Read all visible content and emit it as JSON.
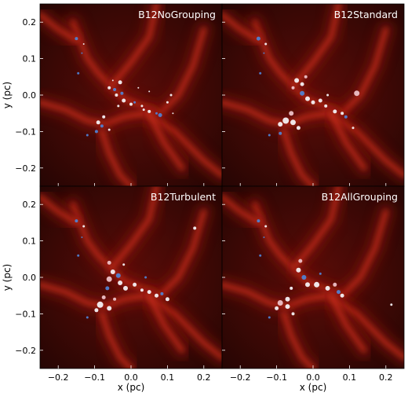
{
  "chart_data": {
    "type": "scatter",
    "xlabel": "x (pc)",
    "ylabel": "y (pc)",
    "xlim": [
      -0.25,
      0.25
    ],
    "ylim": [
      -0.25,
      0.25
    ],
    "xticks": [
      "−0.2",
      "−0.1",
      "0.0",
      "0.1",
      "0.2"
    ],
    "xtick_values": [
      -0.2,
      -0.1,
      0.0,
      0.1,
      0.2
    ],
    "yticks": [
      "−0.2",
      "−0.1",
      "0.0",
      "0.1",
      "0.2"
    ],
    "ytick_values": [
      -0.2,
      -0.1,
      0.0,
      0.1,
      0.2
    ],
    "grid": false,
    "background": "dark red gas density map",
    "colors": {
      "blue": "#4f83d6",
      "light_blue": "#9fc2ee",
      "white": "#f7f7fb",
      "pink": "#f0c6cc"
    },
    "panels": [
      {
        "title": "B12NoGrouping",
        "points": [
          {
            "x": -0.15,
            "y": 0.155,
            "s": 2,
            "c": "blue"
          },
          {
            "x": -0.13,
            "y": 0.14,
            "s": 1,
            "c": "white"
          },
          {
            "x": -0.135,
            "y": 0.115,
            "s": 1,
            "c": "blue"
          },
          {
            "x": -0.145,
            "y": 0.06,
            "s": 1.5,
            "c": "blue"
          },
          {
            "x": -0.05,
            "y": 0.04,
            "s": 1,
            "c": "white"
          },
          {
            "x": -0.06,
            "y": 0.02,
            "s": 2,
            "c": "white"
          },
          {
            "x": -0.045,
            "y": 0.015,
            "s": 2,
            "c": "blue"
          },
          {
            "x": -0.03,
            "y": 0.035,
            "s": 2.5,
            "c": "white"
          },
          {
            "x": -0.04,
            "y": 0.0,
            "s": 2,
            "c": "white"
          },
          {
            "x": -0.025,
            "y": 0.005,
            "s": 2,
            "c": "blue"
          },
          {
            "x": -0.02,
            "y": -0.015,
            "s": 2.5,
            "c": "white"
          },
          {
            "x": -0.035,
            "y": -0.03,
            "s": 1.5,
            "c": "white"
          },
          {
            "x": 0.0,
            "y": -0.025,
            "s": 2,
            "c": "white"
          },
          {
            "x": 0.01,
            "y": -0.02,
            "s": 1.5,
            "c": "blue"
          },
          {
            "x": 0.03,
            "y": -0.03,
            "s": 1.5,
            "c": "white"
          },
          {
            "x": 0.035,
            "y": -0.04,
            "s": 1.5,
            "c": "white"
          },
          {
            "x": 0.05,
            "y": -0.045,
            "s": 2,
            "c": "white"
          },
          {
            "x": 0.07,
            "y": -0.05,
            "s": 1.5,
            "c": "blue"
          },
          {
            "x": 0.08,
            "y": -0.055,
            "s": 2.5,
            "c": "blue"
          },
          {
            "x": 0.1,
            "y": -0.02,
            "s": 1.5,
            "c": "white"
          },
          {
            "x": 0.11,
            "y": 0.0,
            "s": 1.5,
            "c": "white"
          },
          {
            "x": 0.115,
            "y": -0.05,
            "s": 1,
            "c": "white"
          },
          {
            "x": -0.075,
            "y": -0.06,
            "s": 2,
            "c": "white"
          },
          {
            "x": -0.09,
            "y": -0.075,
            "s": 2.5,
            "c": "white"
          },
          {
            "x": -0.08,
            "y": -0.085,
            "s": 2,
            "c": "blue"
          },
          {
            "x": -0.095,
            "y": -0.1,
            "s": 2,
            "c": "blue"
          },
          {
            "x": -0.06,
            "y": -0.095,
            "s": 1.5,
            "c": "white"
          },
          {
            "x": -0.12,
            "y": -0.11,
            "s": 1.5,
            "c": "blue"
          },
          {
            "x": 0.05,
            "y": 0.01,
            "s": 1,
            "c": "white"
          },
          {
            "x": 0.02,
            "y": 0.02,
            "s": 1,
            "c": "white"
          }
        ]
      },
      {
        "title": "B12Standard",
        "points": [
          {
            "x": -0.15,
            "y": 0.155,
            "s": 2.5,
            "c": "blue"
          },
          {
            "x": -0.13,
            "y": 0.14,
            "s": 1.5,
            "c": "white"
          },
          {
            "x": -0.135,
            "y": 0.115,
            "s": 1,
            "c": "blue"
          },
          {
            "x": -0.145,
            "y": 0.06,
            "s": 1.5,
            "c": "blue"
          },
          {
            "x": -0.045,
            "y": 0.04,
            "s": 3,
            "c": "white"
          },
          {
            "x": -0.03,
            "y": 0.03,
            "s": 2.5,
            "c": "white"
          },
          {
            "x": -0.055,
            "y": 0.02,
            "s": 2,
            "c": "pink"
          },
          {
            "x": -0.03,
            "y": 0.005,
            "s": 3,
            "c": "blue"
          },
          {
            "x": -0.015,
            "y": -0.01,
            "s": 3,
            "c": "white"
          },
          {
            "x": 0.0,
            "y": -0.02,
            "s": 2.5,
            "c": "white"
          },
          {
            "x": 0.02,
            "y": -0.015,
            "s": 2.5,
            "c": "white"
          },
          {
            "x": 0.035,
            "y": -0.03,
            "s": 2,
            "c": "white"
          },
          {
            "x": 0.06,
            "y": -0.045,
            "s": 2.5,
            "c": "white"
          },
          {
            "x": 0.08,
            "y": -0.05,
            "s": 2,
            "c": "white"
          },
          {
            "x": 0.09,
            "y": -0.06,
            "s": 2,
            "c": "blue"
          },
          {
            "x": 0.12,
            "y": 0.005,
            "s": 3.5,
            "c": "pink"
          },
          {
            "x": 0.11,
            "y": -0.09,
            "s": 1.5,
            "c": "white"
          },
          {
            "x": -0.06,
            "y": -0.05,
            "s": 3,
            "c": "pink"
          },
          {
            "x": -0.075,
            "y": -0.07,
            "s": 4,
            "c": "white"
          },
          {
            "x": -0.055,
            "y": -0.075,
            "s": 3.5,
            "c": "white"
          },
          {
            "x": -0.09,
            "y": -0.08,
            "s": 3,
            "c": "white"
          },
          {
            "x": -0.04,
            "y": -0.09,
            "s": 2.5,
            "c": "white"
          },
          {
            "x": -0.09,
            "y": -0.105,
            "s": 2,
            "c": "blue"
          },
          {
            "x": -0.12,
            "y": -0.11,
            "s": 1.5,
            "c": "blue"
          },
          {
            "x": 0.04,
            "y": 0.0,
            "s": 1.5,
            "c": "white"
          },
          {
            "x": -0.02,
            "y": 0.05,
            "s": 2,
            "c": "pink"
          }
        ]
      },
      {
        "title": "B12Turbulent",
        "points": [
          {
            "x": -0.15,
            "y": 0.155,
            "s": 2,
            "c": "blue"
          },
          {
            "x": -0.13,
            "y": 0.14,
            "s": 1.5,
            "c": "white"
          },
          {
            "x": -0.135,
            "y": 0.11,
            "s": 1,
            "c": "blue"
          },
          {
            "x": -0.145,
            "y": 0.06,
            "s": 1.5,
            "c": "blue"
          },
          {
            "x": 0.175,
            "y": 0.135,
            "s": 2,
            "c": "white"
          },
          {
            "x": -0.06,
            "y": 0.04,
            "s": 2.5,
            "c": "pink"
          },
          {
            "x": -0.05,
            "y": 0.015,
            "s": 3,
            "c": "white"
          },
          {
            "x": -0.035,
            "y": 0.005,
            "s": 3,
            "c": "blue"
          },
          {
            "x": -0.06,
            "y": -0.005,
            "s": 3.5,
            "c": "pink"
          },
          {
            "x": -0.03,
            "y": -0.015,
            "s": 3,
            "c": "white"
          },
          {
            "x": -0.015,
            "y": -0.03,
            "s": 3,
            "c": "white"
          },
          {
            "x": 0.01,
            "y": -0.02,
            "s": 2.5,
            "c": "white"
          },
          {
            "x": 0.03,
            "y": -0.035,
            "s": 2,
            "c": "white"
          },
          {
            "x": 0.05,
            "y": -0.04,
            "s": 2.5,
            "c": "white"
          },
          {
            "x": 0.07,
            "y": -0.05,
            "s": 2.5,
            "c": "white"
          },
          {
            "x": 0.085,
            "y": -0.045,
            "s": 2,
            "c": "blue"
          },
          {
            "x": 0.1,
            "y": -0.06,
            "s": 2.5,
            "c": "white"
          },
          {
            "x": -0.065,
            "y": -0.03,
            "s": 2.5,
            "c": "blue"
          },
          {
            "x": -0.075,
            "y": -0.055,
            "s": 2.5,
            "c": "pink"
          },
          {
            "x": -0.085,
            "y": -0.075,
            "s": 4,
            "c": "white"
          },
          {
            "x": -0.06,
            "y": -0.085,
            "s": 3,
            "c": "white"
          },
          {
            "x": -0.095,
            "y": -0.09,
            "s": 2.5,
            "c": "white"
          },
          {
            "x": -0.12,
            "y": -0.11,
            "s": 1.5,
            "c": "blue"
          },
          {
            "x": -0.045,
            "y": -0.06,
            "s": 2,
            "c": "pink"
          },
          {
            "x": 0.04,
            "y": 0.0,
            "s": 1.5,
            "c": "blue"
          },
          {
            "x": -0.02,
            "y": 0.035,
            "s": 1.5,
            "c": "white"
          }
        ]
      },
      {
        "title": "B12AllGrouping",
        "points": [
          {
            "x": -0.15,
            "y": 0.155,
            "s": 2,
            "c": "blue"
          },
          {
            "x": -0.13,
            "y": 0.14,
            "s": 1.5,
            "c": "white"
          },
          {
            "x": -0.135,
            "y": 0.11,
            "s": 1,
            "c": "blue"
          },
          {
            "x": -0.145,
            "y": 0.06,
            "s": 1.5,
            "c": "blue"
          },
          {
            "x": 0.215,
            "y": -0.075,
            "s": 1.5,
            "c": "white"
          },
          {
            "x": -0.035,
            "y": 0.045,
            "s": 2.5,
            "c": "pink"
          },
          {
            "x": -0.04,
            "y": 0.02,
            "s": 3,
            "c": "white"
          },
          {
            "x": -0.025,
            "y": 0.0,
            "s": 3,
            "c": "blue"
          },
          {
            "x": -0.015,
            "y": -0.02,
            "s": 3,
            "c": "white"
          },
          {
            "x": 0.01,
            "y": -0.02,
            "s": 3.5,
            "c": "white"
          },
          {
            "x": 0.04,
            "y": -0.03,
            "s": 3,
            "c": "white"
          },
          {
            "x": 0.06,
            "y": -0.02,
            "s": 2.5,
            "c": "pink"
          },
          {
            "x": 0.07,
            "y": -0.04,
            "s": 2.5,
            "c": "blue"
          },
          {
            "x": 0.08,
            "y": -0.05,
            "s": 2.5,
            "c": "white"
          },
          {
            "x": -0.06,
            "y": -0.03,
            "s": 2,
            "c": "white"
          },
          {
            "x": -0.07,
            "y": -0.06,
            "s": 3,
            "c": "white"
          },
          {
            "x": -0.09,
            "y": -0.07,
            "s": 3.5,
            "c": "pink"
          },
          {
            "x": -0.07,
            "y": -0.08,
            "s": 3,
            "c": "white"
          },
          {
            "x": -0.1,
            "y": -0.085,
            "s": 2.5,
            "c": "white"
          },
          {
            "x": -0.12,
            "y": -0.11,
            "s": 1.5,
            "c": "blue"
          },
          {
            "x": -0.055,
            "y": -0.1,
            "s": 2,
            "c": "white"
          },
          {
            "x": 0.02,
            "y": 0.01,
            "s": 1.5,
            "c": "blue"
          }
        ]
      }
    ]
  }
}
